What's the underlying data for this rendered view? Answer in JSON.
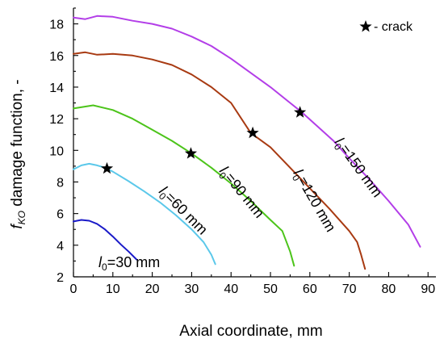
{
  "chart_data": {
    "type": "line",
    "xlabel": "Axial coordinate, mm",
    "ylabel": {
      "main": "f",
      "sub": "KO",
      "rest": " damage function, -"
    },
    "xlim": [
      0,
      92
    ],
    "ylim": [
      2,
      19
    ],
    "xticks": [
      0,
      10,
      20,
      30,
      40,
      50,
      60,
      70,
      80,
      90
    ],
    "yticks": [
      2,
      4,
      6,
      8,
      10,
      12,
      14,
      16,
      18
    ],
    "grid": false,
    "legend": {
      "label": " - crack",
      "position": "top-right",
      "icon": "star-icon"
    },
    "series": [
      {
        "name": "l0=30 mm",
        "label": {
          "main": "l",
          "sub": "0",
          "rest": "=30 mm"
        },
        "color": "#1a1ac8",
        "x": [
          0,
          2,
          4,
          6,
          8,
          10,
          12,
          14,
          16
        ],
        "y": [
          5.5,
          5.6,
          5.55,
          5.35,
          5.0,
          4.55,
          4.05,
          3.6,
          3.1
        ]
      },
      {
        "name": "l0=60 mm",
        "label": {
          "main": "l",
          "sub": "0",
          "rest": "=60 mm"
        },
        "color": "#5bc8ea",
        "x": [
          0,
          2,
          4,
          6,
          8,
          10,
          14,
          18,
          22,
          26,
          30,
          33,
          35,
          36
        ],
        "y": [
          8.8,
          9.05,
          9.15,
          9.05,
          8.9,
          8.65,
          8.05,
          7.4,
          6.7,
          5.9,
          5.0,
          4.2,
          3.4,
          2.8
        ]
      },
      {
        "name": "l0=90 mm",
        "label": {
          "main": "l",
          "sub": "0",
          "rest": "=90 mm"
        },
        "color": "#4cc41a",
        "x": [
          0,
          5,
          10,
          15,
          20,
          25,
          30,
          35,
          40,
          45,
          50,
          53,
          55,
          56
        ],
        "y": [
          12.65,
          12.85,
          12.55,
          12.0,
          11.3,
          10.6,
          9.8,
          8.9,
          7.9,
          6.8,
          5.6,
          4.9,
          3.6,
          2.7
        ]
      },
      {
        "name": "l0=120 mm",
        "label": {
          "main": "l",
          "sub": "0",
          "rest": "=120 mm"
        },
        "color": "#a83a12",
        "x": [
          0,
          3,
          6,
          10,
          15,
          20,
          25,
          30,
          35,
          40,
          45,
          50,
          55,
          60,
          65,
          70,
          72,
          73,
          74
        ],
        "y": [
          16.1,
          16.2,
          16.05,
          16.1,
          16.0,
          15.75,
          15.4,
          14.8,
          14.0,
          13.0,
          11.1,
          10.2,
          8.9,
          7.6,
          6.3,
          4.9,
          4.2,
          3.4,
          2.5
        ]
      },
      {
        "name": "l0=150 mm",
        "label": {
          "main": "l",
          "sub": "0",
          "rest": "=150 mm"
        },
        "color": "#b33ee8",
        "x": [
          0,
          3,
          6,
          10,
          15,
          20,
          25,
          30,
          35,
          40,
          45,
          50,
          55,
          58,
          62,
          66,
          70,
          75,
          80,
          85,
          88
        ],
        "y": [
          18.4,
          18.3,
          18.5,
          18.45,
          18.2,
          18.0,
          17.7,
          17.2,
          16.6,
          15.8,
          14.9,
          14.0,
          13.0,
          12.4,
          11.5,
          10.6,
          9.5,
          8.2,
          6.8,
          5.3,
          3.9
        ]
      }
    ],
    "cracks": [
      {
        "x": 8.5,
        "y": 8.85
      },
      {
        "x": 29.8,
        "y": 9.8
      },
      {
        "x": 45.5,
        "y": 11.1
      },
      {
        "x": 57.5,
        "y": 12.4
      }
    ]
  }
}
